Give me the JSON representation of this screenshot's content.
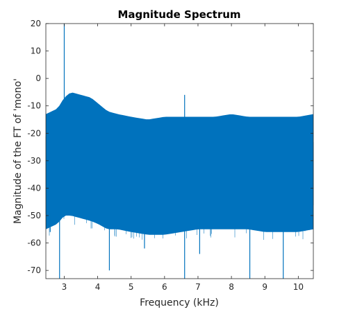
{
  "chart_data": {
    "type": "line",
    "title": "Magnitude Spectrum",
    "xlabel": "Frequency (kHz)",
    "ylabel": "Magnitude of the FT of 'mono'",
    "xlim": [
      2.45,
      10.45
    ],
    "ylim": [
      -73,
      20
    ],
    "xticks": [
      3,
      4,
      5,
      6,
      7,
      8,
      9,
      10
    ],
    "yticks": [
      20,
      10,
      0,
      -10,
      -20,
      -30,
      -40,
      -50,
      -60,
      -70
    ],
    "grid": false,
    "series": [
      {
        "color": "#0072bd",
        "envelope": {
          "x": [
            2.45,
            2.8,
            3.0,
            3.2,
            3.5,
            3.8,
            4.0,
            4.3,
            4.6,
            5.0,
            5.5,
            6.0,
            6.5,
            7.0,
            7.5,
            8.0,
            8.5,
            9.0,
            9.5,
            10.0,
            10.45
          ],
          "upper": [
            -18,
            -16,
            -12,
            -10,
            -11,
            -12,
            -14,
            -17,
            -18,
            -19,
            -20,
            -19,
            -19,
            -19,
            -19,
            -18,
            -19,
            -19,
            -19,
            -19,
            -18
          ],
          "lower": [
            -50,
            -48,
            -45,
            -45,
            -46,
            -47,
            -48,
            -50,
            -50,
            -51,
            -52,
            -52,
            -51,
            -50,
            -50,
            -50,
            -50,
            -51,
            -51,
            -51,
            -50
          ]
        },
        "spikes": [
          {
            "x": 3.0,
            "y": 20
          },
          {
            "x": 2.58,
            "y": -56
          },
          {
            "x": 2.86,
            "y": -73
          },
          {
            "x": 4.35,
            "y": -70
          },
          {
            "x": 6.6,
            "y": -6
          },
          {
            "x": 6.6,
            "y": -73
          },
          {
            "x": 8.55,
            "y": -73
          },
          {
            "x": 9.55,
            "y": -73
          },
          {
            "x": 7.05,
            "y": -64
          },
          {
            "x": 5.4,
            "y": -62
          }
        ]
      }
    ]
  }
}
